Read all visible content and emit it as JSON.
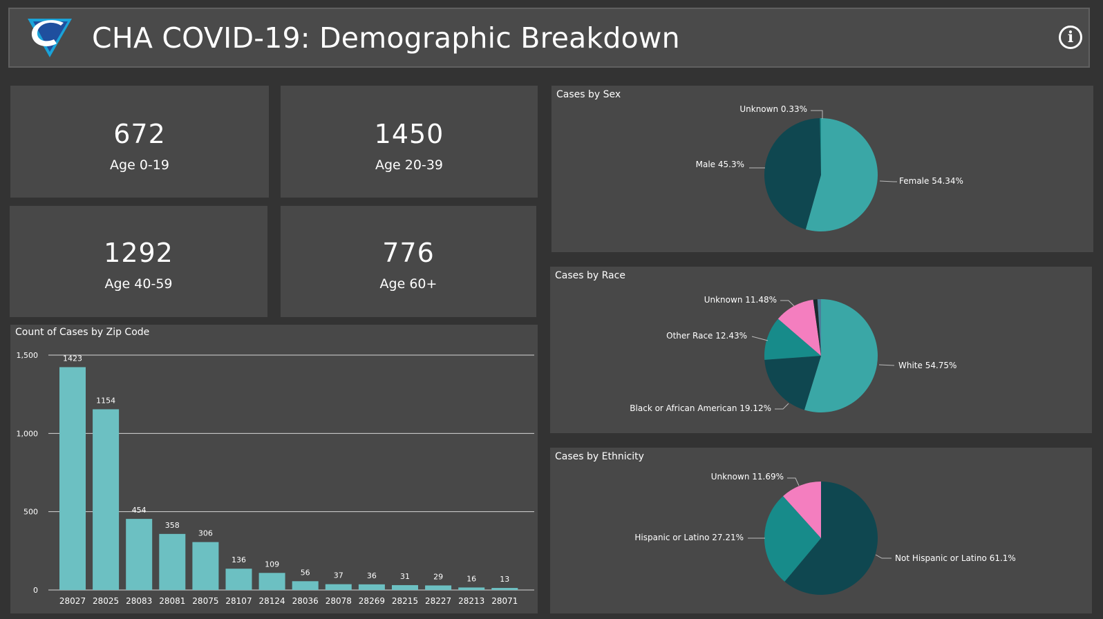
{
  "header": {
    "title": "CHA COVID-19: Demographic Breakdown",
    "info_label": "i"
  },
  "kpis": [
    {
      "value": "672",
      "label": "Age 0-19"
    },
    {
      "value": "1450",
      "label": "Age 20-39"
    },
    {
      "value": "1292",
      "label": "Age 40-59"
    },
    {
      "value": "776",
      "label": "Age 60+"
    }
  ],
  "colors": {
    "background": "#333333",
    "panel": "#484848",
    "bar": "#6cc0c2",
    "teal_light": "#3aa7a6",
    "teal_dark": "#0f4750",
    "teal_mid": "#178b8a",
    "pink": "#f47ebf"
  },
  "bar_panel": {
    "title": "Count of Cases by Zip Code"
  },
  "sex_panel": {
    "title": "Cases by Sex"
  },
  "race_panel": {
    "title": "Cases by Race"
  },
  "ethnicity_panel": {
    "title": "Cases by Ethnicity"
  },
  "chart_data": [
    {
      "type": "bar",
      "title": "Count of Cases by Zip Code",
      "categories": [
        "28027",
        "28025",
        "28083",
        "28081",
        "28075",
        "28107",
        "28124",
        "28036",
        "28078",
        "28269",
        "28215",
        "28227",
        "28213",
        "28071"
      ],
      "values": [
        1423,
        1154,
        454,
        358,
        306,
        136,
        109,
        56,
        37,
        36,
        31,
        29,
        16,
        13
      ],
      "yticks": [
        "0",
        "500",
        "1,000",
        "1,500"
      ],
      "ylim": [
        0,
        1500
      ],
      "xlabel": "",
      "ylabel": "",
      "grid": true
    },
    {
      "type": "pie",
      "title": "Cases by Sex",
      "slices": [
        {
          "label": "Female 54.34%",
          "value": 54.34,
          "color": "#3aa7a6"
        },
        {
          "label": "Male 45.3%",
          "value": 45.3,
          "color": "#0f4750"
        },
        {
          "label": "Unknown 0.33%",
          "value": 0.33,
          "color": "#178b8a"
        }
      ]
    },
    {
      "type": "pie",
      "title": "Cases by Race",
      "slices": [
        {
          "label": "White 54.75%",
          "value": 54.75,
          "color": "#3aa7a6"
        },
        {
          "label": "Black or African American 19.12%",
          "value": 19.12,
          "color": "#0f4750"
        },
        {
          "label": "Other Race 12.43%",
          "value": 12.43,
          "color": "#178b8a"
        },
        {
          "label": "Unknown 11.48%",
          "value": 11.48,
          "color": "#f47ebf"
        },
        {
          "label": "",
          "value": 1.2,
          "color": "#1a2a2e"
        },
        {
          "label": "",
          "value": 1.02,
          "color": "#4a7f9a"
        }
      ]
    },
    {
      "type": "pie",
      "title": "Cases by Ethnicity",
      "slices": [
        {
          "label": "Not Hispanic or Latino 61.1%",
          "value": 61.1,
          "color": "#0f4750"
        },
        {
          "label": "Hispanic or Latino 27.21%",
          "value": 27.21,
          "color": "#178b8a"
        },
        {
          "label": "Unknown 11.69%",
          "value": 11.69,
          "color": "#f47ebf"
        }
      ]
    }
  ]
}
